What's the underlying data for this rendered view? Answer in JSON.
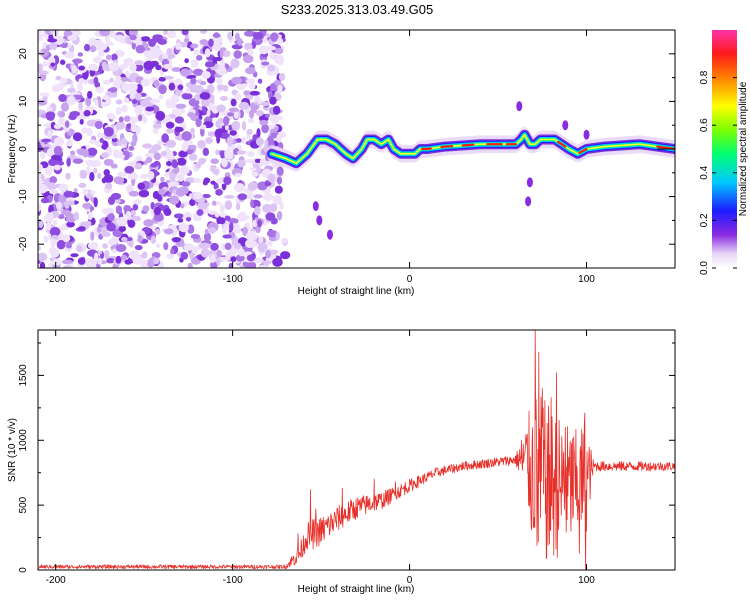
{
  "title": "S233.2025.313.03.49.G05",
  "chart_data": [
    {
      "type": "heatmap",
      "name": "spectrogram",
      "xlabel": "Height of straight line (km)",
      "ylabel": "Frequency (Hz)",
      "xlim": [
        -210,
        150
      ],
      "ylim": [
        -25,
        25
      ],
      "xticks": [
        -200,
        -100,
        0,
        100
      ],
      "yticks": [
        20,
        10,
        0,
        -10,
        -20
      ],
      "colorbar": {
        "label": "Normalized spectral amplitude",
        "range": [
          0,
          1
        ],
        "ticks": [
          "0.0",
          "0.2",
          "0.4",
          "0.6",
          "0.8"
        ],
        "tick_values": [
          0,
          0.2,
          0.4,
          0.6,
          0.8
        ]
      },
      "noise_region_x": [
        -210,
        -72
      ],
      "signal_path": [
        [
          -78,
          -1
        ],
        [
          -70,
          -2
        ],
        [
          -64,
          -3
        ],
        [
          -58,
          -1
        ],
        [
          -52,
          2
        ],
        [
          -47,
          2
        ],
        [
          -42,
          1
        ],
        [
          -36,
          -1
        ],
        [
          -32,
          -2
        ],
        [
          -27,
          0
        ],
        [
          -24,
          2
        ],
        [
          -20,
          2
        ],
        [
          -16,
          1
        ],
        [
          -12,
          2
        ],
        [
          -9,
          0
        ],
        [
          -5,
          -1
        ],
        [
          -1,
          -1
        ],
        [
          3,
          -1
        ],
        [
          6,
          0
        ],
        [
          10,
          0
        ],
        [
          20,
          0.5
        ],
        [
          40,
          1
        ],
        [
          60,
          1
        ],
        [
          63,
          2
        ],
        [
          65,
          3
        ],
        [
          68,
          1
        ],
        [
          71,
          1
        ],
        [
          74,
          2
        ],
        [
          77,
          2
        ],
        [
          82,
          2
        ],
        [
          86,
          1
        ],
        [
          90,
          0
        ],
        [
          95,
          -1
        ],
        [
          100,
          0
        ],
        [
          110,
          0.5
        ],
        [
          130,
          1
        ],
        [
          150,
          0
        ]
      ],
      "hot_segments": [
        [
          7,
          12
        ],
        [
          18,
          24
        ],
        [
          30,
          36
        ],
        [
          44,
          52
        ],
        [
          55,
          60
        ],
        [
          84,
          88
        ],
        [
          96,
          100
        ],
        [
          140,
          150
        ]
      ],
      "extra_blobs": [
        [
          -53,
          -12
        ],
        [
          -51,
          -15
        ],
        [
          -45,
          -18
        ],
        [
          68,
          -7
        ],
        [
          67,
          -11
        ],
        [
          88,
          5
        ],
        [
          100,
          3
        ],
        [
          62,
          9
        ]
      ]
    },
    {
      "type": "line",
      "name": "snr",
      "xlabel": "Height of straight line (km)",
      "ylabel": "SNR (10 * v/v)",
      "xlim": [
        -210,
        150
      ],
      "ylim": [
        0,
        1850
      ],
      "xticks": [
        -200,
        -100,
        0,
        100
      ],
      "yticks": [
        0,
        500,
        1000,
        1500
      ],
      "color": "#e8302a",
      "series": [
        {
          "name": "SNR"
        }
      ],
      "profile": [
        [
          -210,
          25
        ],
        [
          -70,
          25
        ],
        [
          -62,
          130
        ],
        [
          -58,
          260
        ],
        [
          -50,
          300
        ],
        [
          -40,
          400
        ],
        [
          -30,
          480
        ],
        [
          -15,
          540
        ],
        [
          0,
          650
        ],
        [
          15,
          750
        ],
        [
          30,
          800
        ],
        [
          60,
          850
        ],
        [
          66,
          850
        ],
        [
          69,
          750
        ],
        [
          72,
          700
        ],
        [
          80,
          650
        ],
        [
          88,
          640
        ],
        [
          95,
          650
        ],
        [
          100,
          700
        ],
        [
          104,
          800
        ],
        [
          150,
          800
        ]
      ],
      "noise_profile": [
        [
          -210,
          15
        ],
        [
          -70,
          15
        ],
        [
          -65,
          60
        ],
        [
          -55,
          120
        ],
        [
          -40,
          100
        ],
        [
          -10,
          60
        ],
        [
          10,
          40
        ],
        [
          30,
          35
        ],
        [
          60,
          40
        ],
        [
          66,
          300
        ],
        [
          69,
          550
        ],
        [
          72,
          700
        ],
        [
          80,
          600
        ],
        [
          90,
          480
        ],
        [
          96,
          420
        ],
        [
          99,
          500
        ],
        [
          104,
          40
        ],
        [
          150,
          35
        ]
      ],
      "peaks": [
        [
          -63,
          280
        ],
        [
          -56,
          620
        ],
        [
          -53,
          470
        ],
        [
          -38,
          630
        ],
        [
          -20,
          700
        ],
        [
          -8,
          680
        ],
        [
          71,
          1850
        ],
        [
          73,
          1680
        ],
        [
          75,
          1400
        ],
        [
          76,
          1000
        ],
        [
          80,
          1330
        ],
        [
          83,
          1520
        ],
        [
          88,
          1100
        ],
        [
          92,
          1010
        ],
        [
          99,
          1210
        ],
        [
          99.5,
          0
        ],
        [
          96,
          130
        ],
        [
          72,
          190
        ],
        [
          79,
          200
        ]
      ]
    }
  ]
}
